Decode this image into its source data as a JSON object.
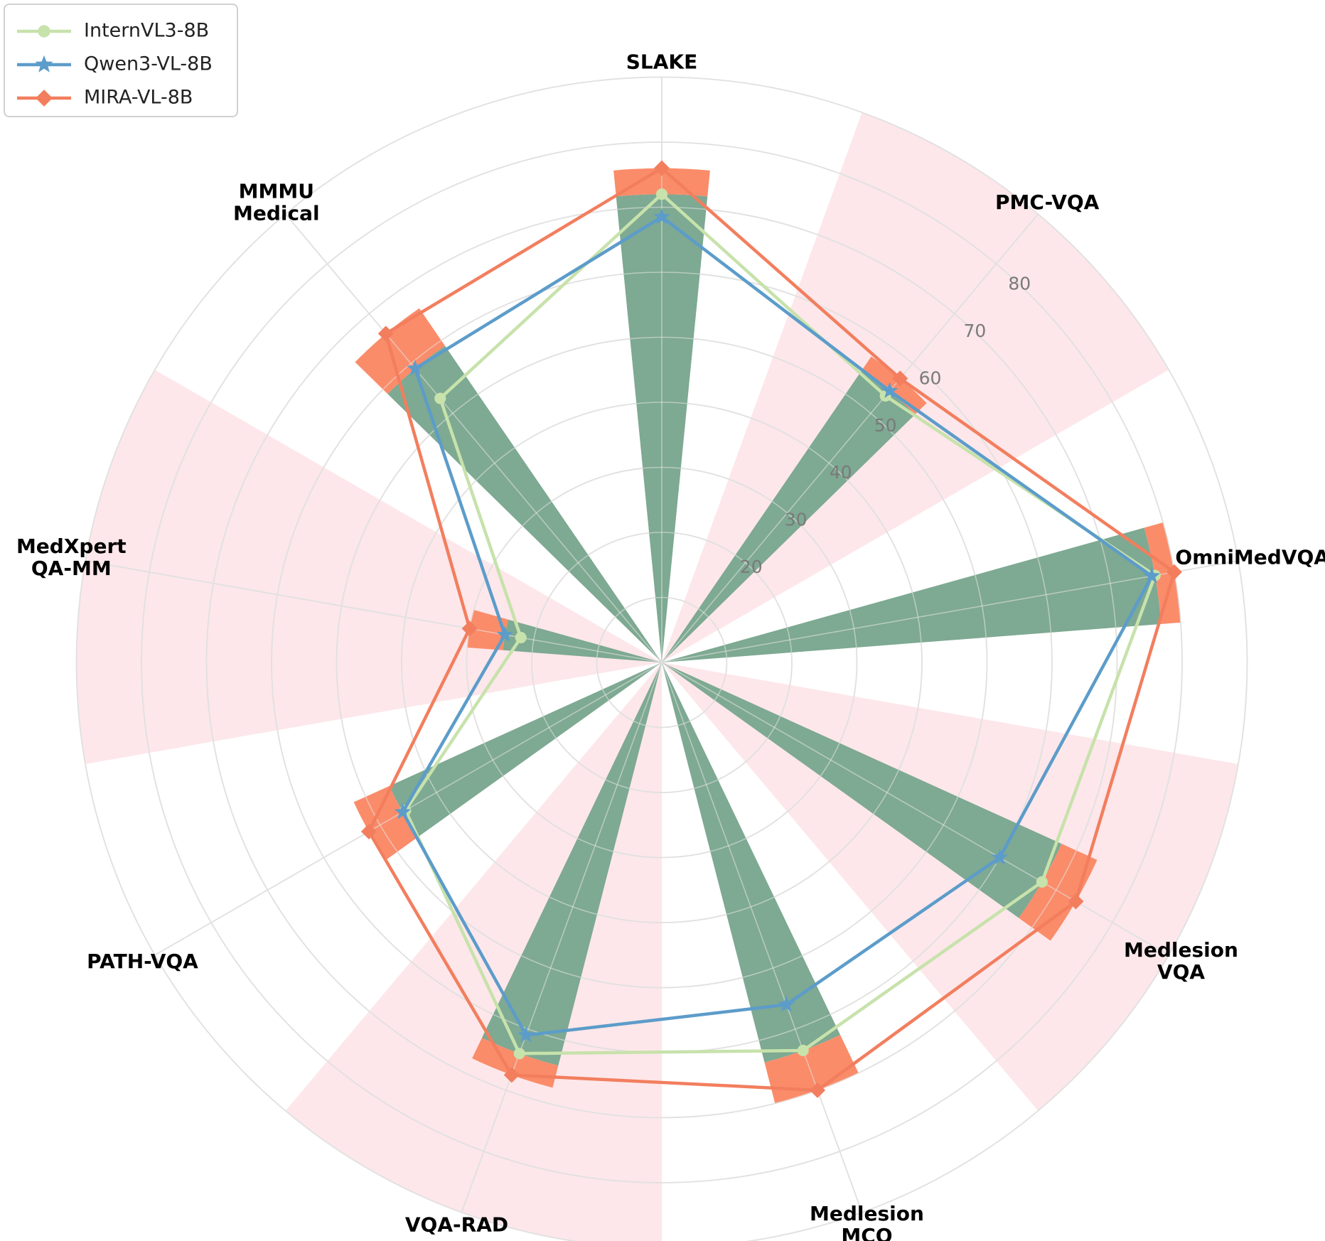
{
  "chart_data": {
    "type": "radar",
    "categories": [
      [
        "SLAKE"
      ],
      [
        "PMC-VQA"
      ],
      [
        "OmniMedVQA"
      ],
      [
        "Medlesion",
        "VQA"
      ],
      [
        "Medlesion",
        "MCQ"
      ],
      [
        "VQA-RAD"
      ],
      [
        "PATH-VQA"
      ],
      [
        "MedXpert",
        "QA-MM"
      ],
      [
        "MMMU",
        "Medical"
      ]
    ],
    "radial_ticks": [
      "20",
      "30",
      "40",
      "50",
      "60",
      "70",
      "80"
    ],
    "tick_values": [
      20,
      30,
      40,
      50,
      60,
      70,
      80
    ],
    "grid_values": [
      10,
      20,
      30,
      40,
      50,
      60,
      70,
      80,
      90
    ],
    "r_range": [
      0,
      90
    ],
    "grid": true,
    "legend_placement": "top-left",
    "highlight_sectors": [
      1,
      3,
      5,
      7
    ],
    "highlight_color": "#fde7ea",
    "base_bar_color": "#7ea992",
    "gain_bar_color": "#fa8c6a",
    "series": [
      {
        "name": "InternVL3-8B",
        "color": "#c7e2ab",
        "marker": "circle",
        "values": [
          72.0,
          53.5,
          77.0,
          67.5,
          63.5,
          64.0,
          45.5,
          22.0,
          53.0
        ]
      },
      {
        "name": "Qwen3-VL-8B",
        "color": "#5c9cca",
        "marker": "star",
        "values": [
          68.5,
          54.5,
          76.5,
          60.0,
          56.0,
          61.0,
          46.0,
          24.5,
          59.0
        ]
      },
      {
        "name": "MIRA-VL-8B",
        "color": "#f27e5e",
        "marker": "diamond",
        "values": [
          76.0,
          57.0,
          80.0,
          73.5,
          70.0,
          67.5,
          52.0,
          30.0,
          66.0
        ]
      }
    ]
  }
}
